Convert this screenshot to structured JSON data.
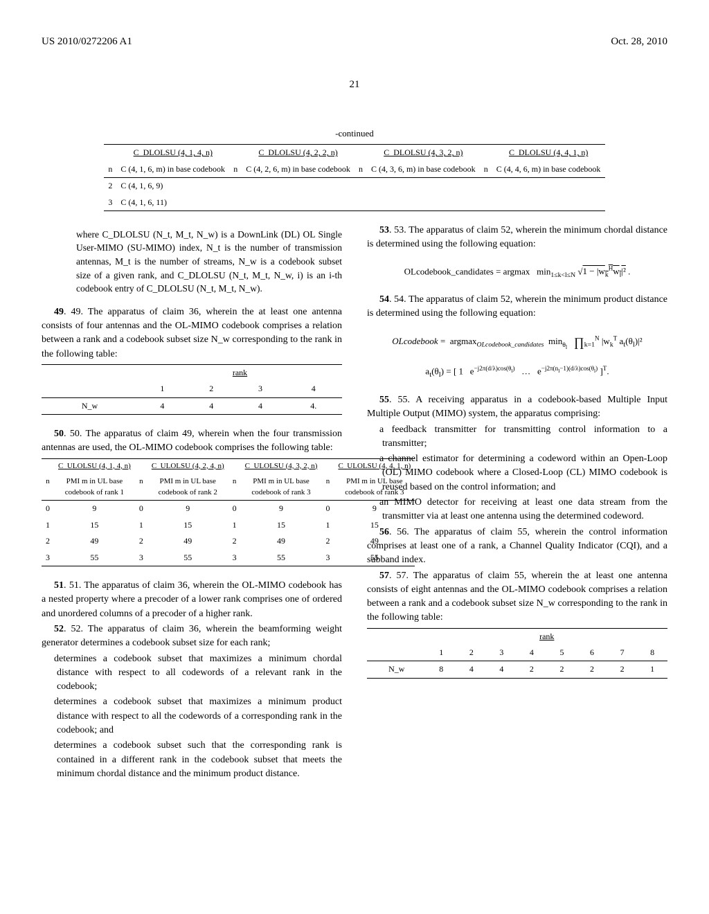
{
  "header": {
    "pubnum": "US 2010/0272206 A1",
    "date": "Oct. 28, 2010"
  },
  "pagenum": "21",
  "topTable": {
    "caption": "-continued",
    "headers": [
      "C_DLOLSU (4, 1, 4, n)",
      "C_DLOLSU (4, 2, 2, n)",
      "C_DLOLSU (4, 3, 2, n)",
      "C_DLOLSU (4, 4, 1, n)"
    ],
    "subheaders": [
      "n",
      "C (4, 1, 6, m) in base codebook",
      "n",
      "C (4, 2, 6, m) in base codebook",
      "n",
      "C (4, 3, 6, m) in base codebook",
      "n",
      "C (4, 4, 6, m) in base codebook"
    ],
    "rows": [
      [
        "2",
        "C (4, 1, 6, 9)",
        "",
        "",
        "",
        "",
        "",
        ""
      ],
      [
        "3",
        "C (4, 1, 6, 11)",
        "",
        "",
        "",
        "",
        "",
        ""
      ]
    ]
  },
  "leftCol": {
    "def": "where C_DLOLSU (N_t, M_t, N_w) is a DownLink (DL) OL Single User-MIMO (SU-MIMO) index, N_t is the number of transmission antennas, M_t is the number of streams, N_w is a codebook subset size of a given rank, and C_DLOLSU (N_t, M_t, N_w, i) is an i-th codebook entry of C_DLOLSU (N_t, M_t, N_w).",
    "claim49": "49. The apparatus of claim 36, wherein the at least one antenna consists of four antennas and the OL-MIMO codebook comprises a relation between a rank and a codebook subset size N_w corresponding to the rank in the following table:",
    "table49": {
      "rankHeader": "rank",
      "ranks": [
        "1",
        "2",
        "3",
        "4"
      ],
      "rowLabel": "N_w",
      "values": [
        "4",
        "4",
        "4",
        "4."
      ]
    },
    "claim50": "50. The apparatus of claim 49, wherein when the four transmission antennas are used, the OL-MIMO codebook comprises the following table:",
    "table50": {
      "headers": [
        "C_ULOLSU (4, 1, 4, n)",
        "C_ULOLSU (4, 2, 4, n)",
        "C_ULOLSU (4, 3, 2, n)",
        "C_ULOLSU (4, 4, 1, n)"
      ],
      "subheaders": [
        "n",
        "PMI m in UL base codebook of rank 1",
        "n",
        "PMI m in UL base codebook of rank 2",
        "n",
        "PMI m in UL base codebook of rank 3",
        "n",
        "PMI m in UL base codebook of rank 3"
      ],
      "rows": [
        [
          "0",
          "9",
          "0",
          "9",
          "0",
          "9",
          "0",
          "9"
        ],
        [
          "1",
          "15",
          "1",
          "15",
          "1",
          "15",
          "1",
          "15"
        ],
        [
          "2",
          "49",
          "2",
          "49",
          "2",
          "49",
          "2",
          "49"
        ],
        [
          "3",
          "55",
          "3",
          "55",
          "3",
          "55",
          "3",
          "55"
        ]
      ]
    },
    "claim51": "51. The apparatus of claim 36, wherein the OL-MIMO codebook has a nested property where a precoder of a lower rank comprises one of ordered and unordered columns of a precoder of a higher rank.",
    "claim52": "52. The apparatus of claim 36, wherein the beamforming weight generator determines a codebook subset size for each rank;",
    "claim52a": "determines a codebook subset that maximizes a minimum chordal distance with respect to all codewords of a relevant rank in the codebook;",
    "claim52b": "determines a codebook subset that maximizes a minimum product distance with respect to all the codewords of a corresponding rank in the codebook; and",
    "claim52c": "determines a codebook subset such that the corresponding rank is contained in a different rank in the codebook subset that meets the minimum chordal distance and the minimum product distance."
  },
  "rightCol": {
    "claim53": "53. The apparatus of claim 52, wherein the minimum chordal distance is determined using the following equation:",
    "claim54": "54. The apparatus of claim 52, wherein the minimum product distance is determined using the following equation:",
    "claim55": "55. A receiving apparatus in a codebook-based Multiple Input Multiple Output (MIMO) system, the apparatus comprising:",
    "claim55a": "a feedback transmitter for transmitting control information to a transmitter;",
    "claim55b": "a channel estimator for determining a codeword within an Open-Loop (OL) MIMO codebook where a Closed-Loop (CL) MIMO codebook is reused based on the control information; and",
    "claim55c": "an MIMO detector for receiving at least one data stream from the transmitter via at least one antenna using the determined codeword.",
    "claim56": "56. The apparatus of claim 55, wherein the control information comprises at least one of a rank, a Channel Quality Indicator (CQI), and a subband index.",
    "claim57": "57. The apparatus of claim 55, wherein the at least one antenna consists of eight antennas and the OL-MIMO codebook comprises a relation between a rank and a codebook subset size N_w corresponding to the rank in the following table:",
    "table57": {
      "rankHeader": "rank",
      "ranks": [
        "1",
        "2",
        "3",
        "4",
        "5",
        "6",
        "7",
        "8"
      ],
      "rowLabel": "N_w",
      "values": [
        "8",
        "4",
        "4",
        "2",
        "2",
        "2",
        "2",
        "1"
      ]
    }
  }
}
